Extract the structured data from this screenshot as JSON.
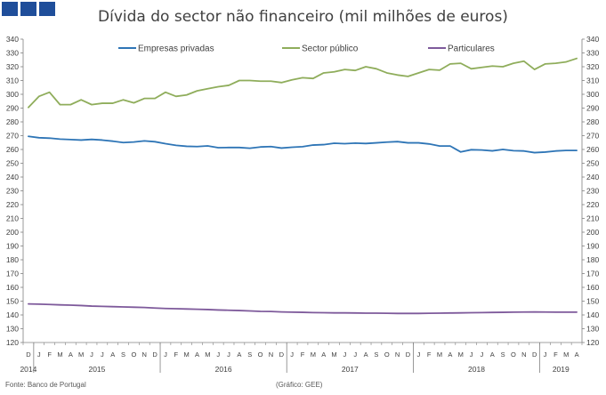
{
  "colors": {
    "logo": "#1f4e9a",
    "series": [
      "#2e75b6",
      "#8fad5b",
      "#7e5a9b"
    ],
    "axis": "#808080",
    "text": "#404040"
  },
  "footer": {
    "source": "Fonte: Banco de Portugal",
    "credit": "(Gráfico: GEE)"
  },
  "chart_data": {
    "type": "line",
    "title": "Dívida do sector não financeiro (mil milhões de euros)",
    "ylim": [
      120,
      340
    ],
    "ystep": 10,
    "grid": false,
    "legend_position": "top",
    "x": [
      "2014-12",
      "2015-01",
      "2015-02",
      "2015-03",
      "2015-04",
      "2015-05",
      "2015-06",
      "2015-07",
      "2015-08",
      "2015-09",
      "2015-10",
      "2015-11",
      "2015-12",
      "2016-01",
      "2016-02",
      "2016-03",
      "2016-04",
      "2016-05",
      "2016-06",
      "2016-07",
      "2016-08",
      "2016-09",
      "2016-10",
      "2016-11",
      "2016-12",
      "2017-01",
      "2017-02",
      "2017-03",
      "2017-04",
      "2017-05",
      "2017-06",
      "2017-07",
      "2017-08",
      "2017-09",
      "2017-10",
      "2017-11",
      "2017-12",
      "2018-01",
      "2018-02",
      "2018-03",
      "2018-04",
      "2018-05",
      "2018-06",
      "2018-07",
      "2018-08",
      "2018-09",
      "2018-10",
      "2018-11",
      "2018-12",
      "2019-01",
      "2019-02",
      "2019-03",
      "2019-04"
    ],
    "month_labels": [
      "D",
      "J",
      "F",
      "M",
      "A",
      "M",
      "J",
      "J",
      "A",
      "S",
      "O",
      "N",
      "D",
      "J",
      "F",
      "M",
      "A",
      "M",
      "J",
      "J",
      "A",
      "S",
      "O",
      "N",
      "D",
      "J",
      "F",
      "M",
      "A",
      "M",
      "J",
      "J",
      "A",
      "S",
      "O",
      "N",
      "D",
      "J",
      "F",
      "M",
      "A",
      "M",
      "J",
      "J",
      "A",
      "S",
      "O",
      "N",
      "D",
      "J",
      "F",
      "M",
      "A"
    ],
    "years": [
      {
        "label": "2014",
        "start": 0,
        "end": 0
      },
      {
        "label": "2015",
        "start": 1,
        "end": 12
      },
      {
        "label": "2016",
        "start": 13,
        "end": 24
      },
      {
        "label": "2017",
        "start": 25,
        "end": 36
      },
      {
        "label": "2018",
        "start": 37,
        "end": 48
      },
      {
        "label": "2019",
        "start": 49,
        "end": 52
      }
    ],
    "series": [
      {
        "name": "Empresas privadas",
        "values": [
          269.5,
          268.5,
          268.2,
          267.5,
          267.2,
          266.8,
          267.3,
          266.8,
          266,
          265,
          265.4,
          266.2,
          265.6,
          264.2,
          263,
          262.3,
          262.1,
          262.6,
          261.3,
          261.4,
          261.4,
          260.9,
          261.8,
          262.1,
          261,
          261.6,
          262,
          263.2,
          263.5,
          264.5,
          264.2,
          264.6,
          264.3,
          264.8,
          265.3,
          265.7,
          264.8,
          264.8,
          264,
          262.5,
          262.5,
          258.2,
          259.8,
          259.6,
          259,
          260,
          259.1,
          258.9,
          257.7,
          258.1,
          258.9,
          259.3,
          259.3
        ]
      },
      {
        "name": "Sector público",
        "values": [
          290.5,
          298.5,
          301.5,
          292.5,
          292.5,
          296,
          292.5,
          293.5,
          293.5,
          296,
          293.8,
          297,
          297,
          301.5,
          298.5,
          299.5,
          302.5,
          304,
          305.5,
          306.5,
          310,
          310,
          309.5,
          309.5,
          308.5,
          310.5,
          312,
          311.5,
          315.5,
          316.3,
          318,
          317.3,
          320,
          318.5,
          315.5,
          314,
          313,
          315.5,
          318,
          317.5,
          322,
          322.5,
          318.5,
          319.5,
          320.5,
          320,
          322.5,
          324,
          318,
          322,
          322.5,
          323.5,
          326
        ]
      },
      {
        "name": "Particulares",
        "values": [
          148,
          147.8,
          147.6,
          147.3,
          147.1,
          146.8,
          146.4,
          146.2,
          146,
          145.8,
          145.6,
          145.4,
          145,
          144.7,
          144.5,
          144.3,
          144.1,
          143.9,
          143.6,
          143.4,
          143.2,
          142.9,
          142.6,
          142.5,
          142.2,
          142,
          141.9,
          141.7,
          141.6,
          141.5,
          141.5,
          141.4,
          141.3,
          141.3,
          141.2,
          141.1,
          141.1,
          141.1,
          141.2,
          141.3,
          141.4,
          141.5,
          141.6,
          141.7,
          141.8,
          141.9,
          142,
          142.1,
          142.2,
          142.1,
          142,
          142,
          142
        ]
      }
    ]
  }
}
